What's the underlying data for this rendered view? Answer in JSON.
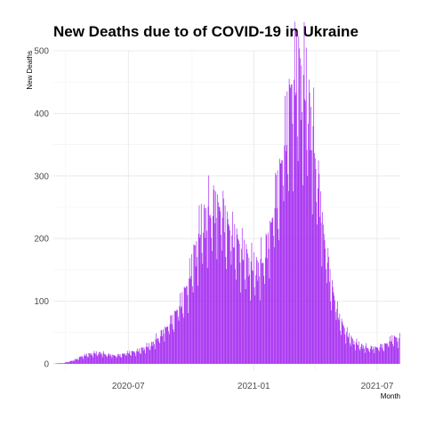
{
  "chart_data": {
    "type": "bar",
    "title": "New Deaths due to of COVID-19 in Ukraine",
    "xlabel": "Month",
    "ylabel": "New Deaths",
    "x_start": "2020-03-13",
    "x_end": "2021-08-04",
    "ylim": [
      0,
      500
    ],
    "y_ticks": [
      0,
      100,
      200,
      300,
      400,
      500
    ],
    "x_ticks": [
      {
        "date": "2020-07-01",
        "label": "2020-07"
      },
      {
        "date": "2021-01-01",
        "label": "2021-01"
      },
      {
        "date": "2021-07-01",
        "label": "2021-07"
      }
    ],
    "grid": true,
    "bar_color": "#A020F0",
    "series": [
      {
        "weekly_start": "2020-03-13",
        "values": [
          0,
          1,
          1,
          3,
          5,
          8,
          12,
          14,
          16,
          17,
          17,
          15,
          14,
          13,
          14,
          16,
          18,
          19,
          21,
          25,
          28,
          33,
          42,
          50,
          60,
          70,
          85,
          100,
          120,
          150,
          185,
          215,
          230,
          240,
          250,
          245,
          225,
          210,
          195,
          185,
          170,
          160,
          150,
          150,
          165,
          190,
          235,
          275,
          320,
          380,
          430,
          455,
          450,
          425,
          380,
          320,
          250,
          185,
          135,
          100,
          70,
          55,
          42,
          35,
          30,
          27,
          25,
          25,
          26,
          28,
          32,
          40
        ]
      }
    ]
  }
}
